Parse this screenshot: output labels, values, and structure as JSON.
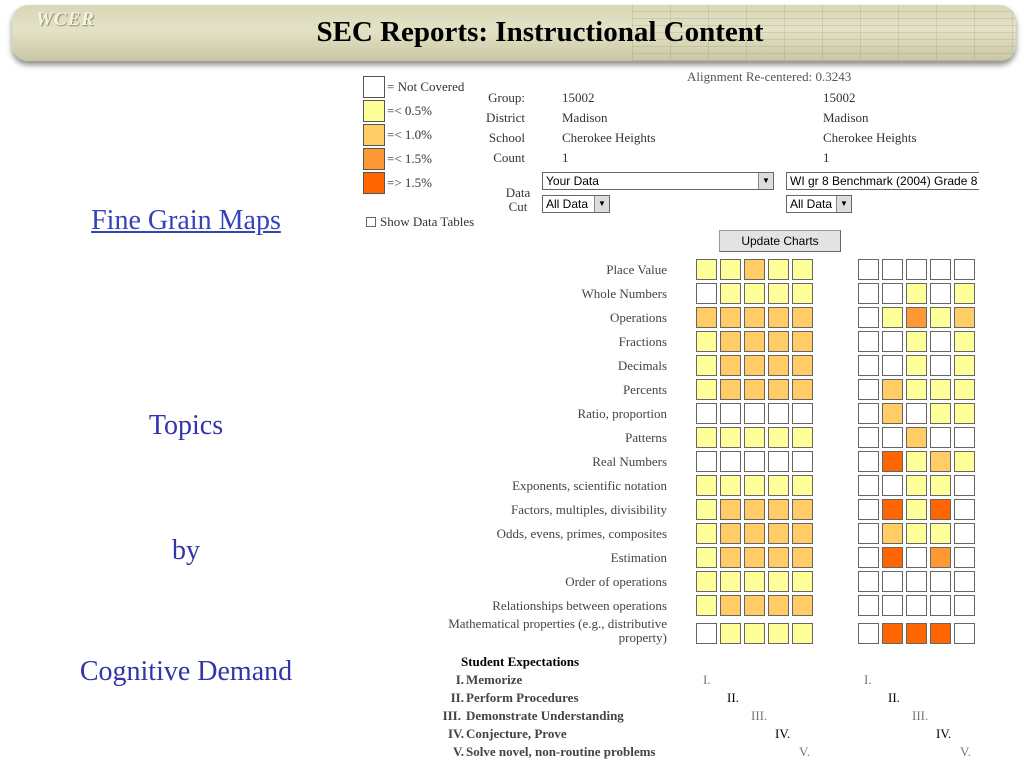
{
  "header": {
    "logo_text": "WCER",
    "title": "SEC Reports: Instructional Content"
  },
  "side": {
    "link": "Fine Grain Maps",
    "topics": "Topics",
    "by": "by",
    "cognitive": "Cognitive Demand"
  },
  "legend": [
    {
      "label": "= Not Covered",
      "color": "#ffffff"
    },
    {
      "label": "=< 0.5%",
      "color": "#ffff99"
    },
    {
      "label": "=< 1.0%",
      "color": "#ffcc66"
    },
    {
      "label": "=< 1.5%",
      "color": "#ff9933"
    },
    {
      "label": "=> 1.5%",
      "color": "#ff6600"
    }
  ],
  "show_tables_label": "Show Data Tables",
  "alignment": "Alignment Re-centered: 0.3243",
  "info": {
    "labels": [
      "Group:",
      "District",
      "School",
      "Count"
    ],
    "left": [
      "15002",
      "Madison",
      "Cherokee Heights",
      "1"
    ],
    "right": [
      "15002",
      "Madison",
      "Cherokee Heights",
      "1"
    ],
    "data_cut_label": "Data Cut"
  },
  "selects": {
    "left_data": "Your Data",
    "left_cut": "All Data",
    "right_data": "WI gr 8 Benchmark (2004) Grade 8",
    "right_cut": "All Data"
  },
  "update_button": "Update Charts",
  "chart_data": {
    "type": "heatmap",
    "scale": [
      "Not Covered",
      "=< 0.5%",
      "=< 1.0%",
      "=< 1.5%",
      "=> 1.5%"
    ],
    "topics": [
      "Place Value",
      "Whole Numbers",
      "Operations",
      "Fractions",
      "Decimals",
      "Percents",
      "Ratio, proportion",
      "Patterns",
      "Real Numbers",
      "Exponents, scientific notation",
      "Factors, multiples, divisibility",
      "Odds, evens, primes, composites",
      "Estimation",
      "Order of operations",
      "Relationships between operations",
      "Mathematical properties (e.g., distributive property)"
    ],
    "columns": [
      "I.",
      "II.",
      "III.",
      "IV.",
      "V."
    ],
    "left_grid": [
      [
        1,
        1,
        2,
        1,
        1
      ],
      [
        0,
        1,
        1,
        1,
        1
      ],
      [
        2,
        2,
        2,
        2,
        2
      ],
      [
        1,
        2,
        2,
        2,
        2
      ],
      [
        1,
        2,
        2,
        2,
        2
      ],
      [
        1,
        2,
        2,
        2,
        2
      ],
      [
        0,
        0,
        0,
        0,
        0
      ],
      [
        1,
        1,
        1,
        1,
        1
      ],
      [
        0,
        0,
        0,
        0,
        0
      ],
      [
        1,
        1,
        1,
        1,
        1
      ],
      [
        1,
        2,
        2,
        2,
        2
      ],
      [
        1,
        2,
        2,
        2,
        2
      ],
      [
        1,
        2,
        2,
        2,
        2
      ],
      [
        1,
        1,
        1,
        1,
        1
      ],
      [
        1,
        2,
        2,
        2,
        2
      ],
      [
        0,
        1,
        1,
        1,
        1
      ]
    ],
    "right_grid": [
      [
        0,
        0,
        0,
        0,
        0
      ],
      [
        0,
        0,
        1,
        0,
        1
      ],
      [
        0,
        1,
        3,
        1,
        2
      ],
      [
        0,
        0,
        1,
        0,
        1
      ],
      [
        0,
        0,
        1,
        0,
        1
      ],
      [
        0,
        2,
        1,
        1,
        1
      ],
      [
        0,
        2,
        0,
        1,
        1
      ],
      [
        0,
        0,
        2,
        0,
        0
      ],
      [
        0,
        4,
        1,
        2,
        1
      ],
      [
        0,
        0,
        1,
        1,
        0
      ],
      [
        0,
        4,
        1,
        4,
        0
      ],
      [
        0,
        2,
        1,
        1,
        0
      ],
      [
        0,
        4,
        0,
        3,
        0
      ],
      [
        0,
        0,
        0,
        0,
        0
      ],
      [
        0,
        0,
        0,
        0,
        0
      ],
      [
        0,
        4,
        4,
        4,
        0
      ]
    ]
  },
  "expectations": {
    "title": "Student Expectations",
    "items": [
      {
        "num": "I.",
        "label": "Memorize"
      },
      {
        "num": "II.",
        "label": "Perform Procedures"
      },
      {
        "num": "III.",
        "label": "Demonstrate Understanding"
      },
      {
        "num": "IV.",
        "label": "Conjecture, Prove"
      },
      {
        "num": "V.",
        "label": "Solve novel, non-routine problems"
      }
    ]
  }
}
